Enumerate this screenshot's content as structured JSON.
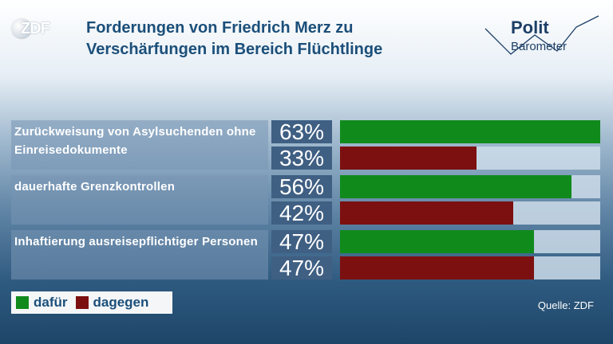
{
  "header": {
    "logo_text": "ZDF",
    "title": "Forderungen von Friedrich Merz zu Verschärfungen im Bereich Flüchtlinge",
    "brand_line1": "Polit",
    "brand_line2": "Barometer"
  },
  "legend": {
    "for_label": "dafür",
    "against_label": "dagegen"
  },
  "source": "Quelle: ZDF",
  "colors": {
    "for": "#118a1c",
    "against": "#7c1010"
  },
  "chart_data": {
    "type": "bar",
    "title": "Forderungen von Friedrich Merz zu Verschärfungen im Bereich Flüchtlinge",
    "categories": [
      "Zurückweisung von Asylsuchenden ohne Einreisedokumente",
      "dauerhafte Grenzkontrollen",
      "Inhaftierung ausreisepflichtiger Personen"
    ],
    "series": [
      {
        "name": "dafür",
        "values": [
          63,
          56,
          47
        ]
      },
      {
        "name": "dagegen",
        "values": [
          33,
          42,
          47
        ]
      }
    ],
    "labels": {
      "dafur": [
        "63%",
        "56%",
        "47%"
      ],
      "dagegen": [
        "33%",
        "42%",
        "47%"
      ]
    },
    "ylim": [
      0,
      63
    ],
    "unit": "%"
  }
}
